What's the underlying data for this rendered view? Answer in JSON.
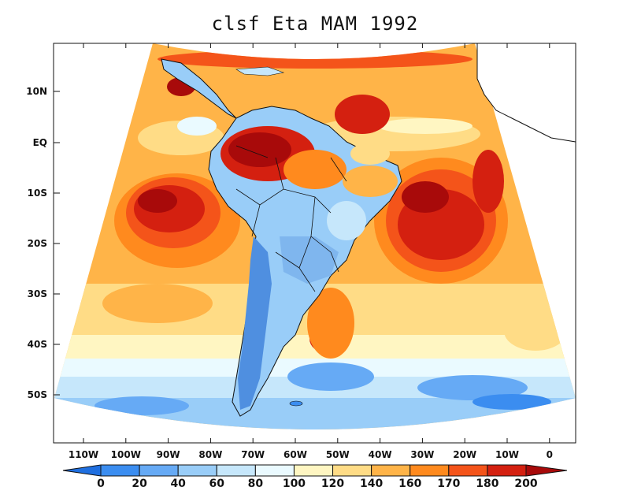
{
  "title": "clsf Eta MAM 1992",
  "lat_labels": [
    "10N",
    "EQ",
    "10S",
    "20S",
    "30S",
    "40S",
    "50S"
  ],
  "lon_labels": [
    "110W",
    "100W",
    "90W",
    "80W",
    "70W",
    "60W",
    "50W",
    "40W",
    "30W",
    "20W",
    "10W",
    "0"
  ],
  "colorbar": {
    "ticks": [
      "0",
      "20",
      "40",
      "60",
      "80",
      "100",
      "120",
      "140",
      "160",
      "170",
      "180",
      "200"
    ],
    "colors": [
      "#1f6fe0",
      "#3b8df0",
      "#66aaf5",
      "#99cdf8",
      "#c6e7fb",
      "#eafaff",
      "#fff6c2",
      "#ffdc86",
      "#ffb448",
      "#ff8a1e",
      "#f4541a",
      "#d42010",
      "#a80a0a"
    ]
  },
  "colors": {
    "ocean_far": "#a9d6f8",
    "ocean_near": "#c4e8fb",
    "land": "#7fb6ee",
    "land_dark": "#4f8fe0",
    "border": "#111111",
    "high": "#b00c0c",
    "mid": "#f7a23a",
    "low": "#fde49a"
  }
}
